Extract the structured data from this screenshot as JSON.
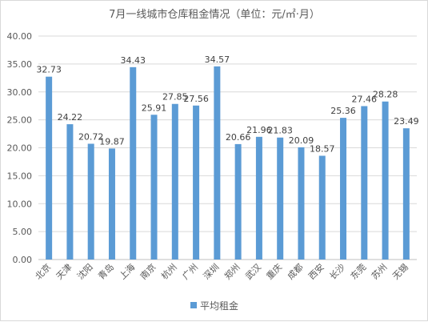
{
  "chart_data": {
    "type": "bar",
    "title": "7月一线城市仓库租金情况（单位：元/㎡·月）",
    "xlabel": "",
    "ylabel": "",
    "ylim": [
      0,
      40
    ],
    "yticks": [
      "0.00",
      "5.00",
      "10.00",
      "15.00",
      "20.00",
      "25.00",
      "30.00",
      "35.00",
      "40.00"
    ],
    "grid": true,
    "legend_position": "bottom",
    "categories": [
      "北京",
      "天津",
      "沈阳",
      "青岛",
      "上海",
      "南京",
      "杭州",
      "广州",
      "深圳",
      "郑州",
      "武汉",
      "重庆",
      "成都",
      "西安",
      "长沙",
      "东莞",
      "苏州",
      "无锡"
    ],
    "series": [
      {
        "name": "平均租金",
        "color": "#5b9bd5",
        "values": [
          32.73,
          24.22,
          20.72,
          19.87,
          34.43,
          25.91,
          27.85,
          27.56,
          34.57,
          20.66,
          21.96,
          21.83,
          20.09,
          18.57,
          25.36,
          27.46,
          28.28,
          23.49
        ],
        "labels": [
          "32.73",
          "24.22",
          "20.72",
          "19.87",
          "34.43",
          "25.91",
          "27.85",
          "27.56",
          "34.57",
          "20.66",
          "21.96",
          "21.83",
          "20.09",
          "18.57",
          "25.36",
          "27.46",
          "28.28",
          "23.49"
        ]
      }
    ]
  }
}
